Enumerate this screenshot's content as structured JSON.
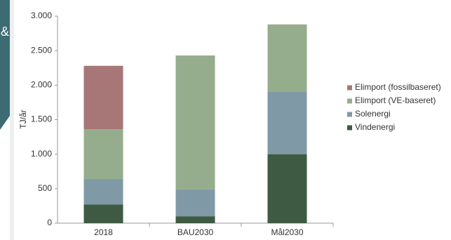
{
  "side_mark": "&",
  "chart_data": {
    "type": "stacked-bar",
    "y_label": "TJ/år",
    "categories": [
      "2018",
      "BAU2030",
      "Mål2030"
    ],
    "series": [
      {
        "name": "Vindenergi",
        "color": "#3e5a42",
        "values": [
          270,
          100,
          1000
        ]
      },
      {
        "name": "Solenergi",
        "color": "#7f9aa6",
        "values": [
          370,
          390,
          910
        ]
      },
      {
        "name": "Elimport (VE-baseret)",
        "color": "#95ad8c",
        "values": [
          720,
          1940,
          970
        ]
      },
      {
        "name": "Elimport (fossilbaseret)",
        "color": "#a77777",
        "values": [
          920,
          0,
          0
        ]
      }
    ],
    "ylim": [
      0,
      3000
    ],
    "yticks": [
      0,
      500,
      {
        "value": 1000,
        "label": "1.000"
      },
      {
        "value": 1500,
        "label": "1.500"
      },
      {
        "value": 2000,
        "label": "2.000"
      },
      {
        "value": 2500,
        "label": "2.500"
      },
      {
        "value": 3000,
        "label": "3.000"
      }
    ],
    "grid": false
  }
}
